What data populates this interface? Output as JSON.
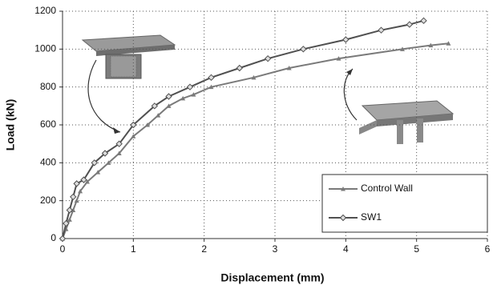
{
  "chart_data": {
    "type": "line",
    "x_label": "Displacement (mm)",
    "y_label": "Load (kN)",
    "xlim": [
      0,
      6
    ],
    "xticks": [
      0,
      1,
      2,
      3,
      4,
      5,
      6
    ],
    "ylim": [
      0,
      1200
    ],
    "yticks": [
      0,
      200,
      400,
      600,
      800,
      1000,
      1200
    ],
    "grid": true,
    "legend": "lower right",
    "series": [
      {
        "name": "Control Wall",
        "color": "#7a7a7a",
        "marker": "triangle",
        "x": [
          0,
          0.05,
          0.1,
          0.15,
          0.2,
          0.25,
          0.35,
          0.5,
          0.65,
          0.8,
          1.0,
          1.2,
          1.35,
          1.5,
          1.7,
          1.85,
          2.1,
          2.7,
          3.2,
          3.9,
          4.8,
          5.2,
          5.45
        ],
        "values": [
          0,
          50,
          100,
          150,
          200,
          250,
          300,
          350,
          400,
          450,
          540,
          600,
          650,
          700,
          740,
          760,
          800,
          850,
          900,
          950,
          1000,
          1020,
          1030
        ]
      },
      {
        "name": "SW1",
        "color": "#505050",
        "marker": "diamond",
        "x": [
          0,
          0.05,
          0.1,
          0.15,
          0.2,
          0.3,
          0.45,
          0.6,
          0.8,
          1.0,
          1.3,
          1.5,
          1.8,
          2.1,
          2.5,
          2.9,
          3.4,
          4.0,
          4.5,
          4.9,
          5.1
        ],
        "values": [
          0,
          80,
          150,
          220,
          290,
          310,
          400,
          450,
          500,
          600,
          700,
          750,
          800,
          850,
          900,
          950,
          1000,
          1050,
          1100,
          1130,
          1150
        ]
      }
    ]
  }
}
